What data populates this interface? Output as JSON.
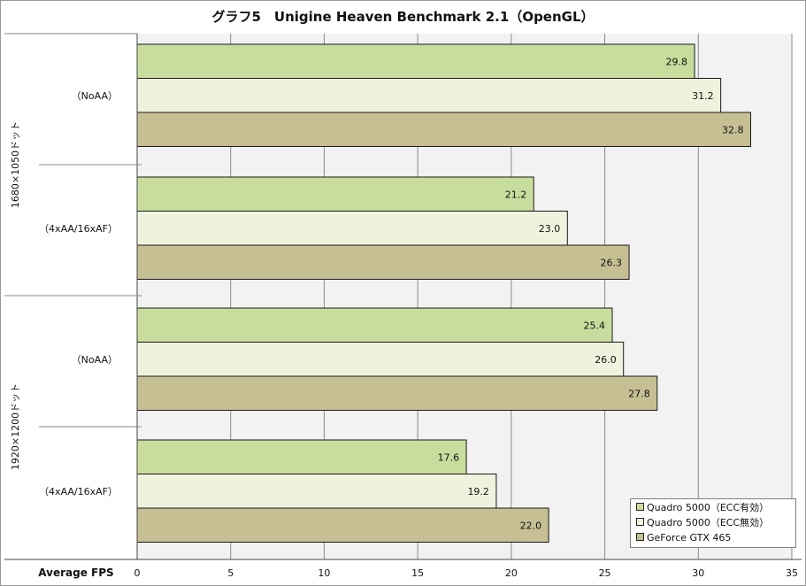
{
  "chart_data": {
    "type": "bar",
    "orientation": "horizontal",
    "title": "グラフ5　Unigine Heaven Benchmark 2.1（OpenGL）",
    "xlabel": "Average FPS",
    "xlim": [
      0,
      35
    ],
    "xticks": [
      0,
      5,
      10,
      15,
      20,
      25,
      30,
      35
    ],
    "grid": true,
    "legend_position": "bottom-right",
    "groups": [
      {
        "label": "1680×1050ドット",
        "categories": [
          "（NoAA）",
          "（4xAA/16xAF）"
        ]
      },
      {
        "label": "1920×1200ドット",
        "categories": [
          "（NoAA）",
          "（4xAA/16xAF）"
        ]
      }
    ],
    "series": [
      {
        "name": "Quadro 5000（ECC有効）",
        "color": "#c8dd9d",
        "values": [
          29.8,
          21.2,
          25.4,
          17.6
        ],
        "labels": [
          "29.8",
          "21.2",
          "25.4",
          "17.6"
        ]
      },
      {
        "name": "Quadro 5000（ECC無効）",
        "color": "#eff3de",
        "values": [
          31.2,
          23.0,
          26.0,
          19.2
        ],
        "labels": [
          "31.2",
          "23.0",
          "26.0",
          "19.2"
        ]
      },
      {
        "name": "GeForce GTX 465",
        "color": "#c7bf94",
        "values": [
          32.8,
          26.3,
          27.8,
          22.0
        ],
        "labels": [
          "32.8",
          "26.3",
          "27.8",
          "22.0"
        ]
      }
    ]
  }
}
